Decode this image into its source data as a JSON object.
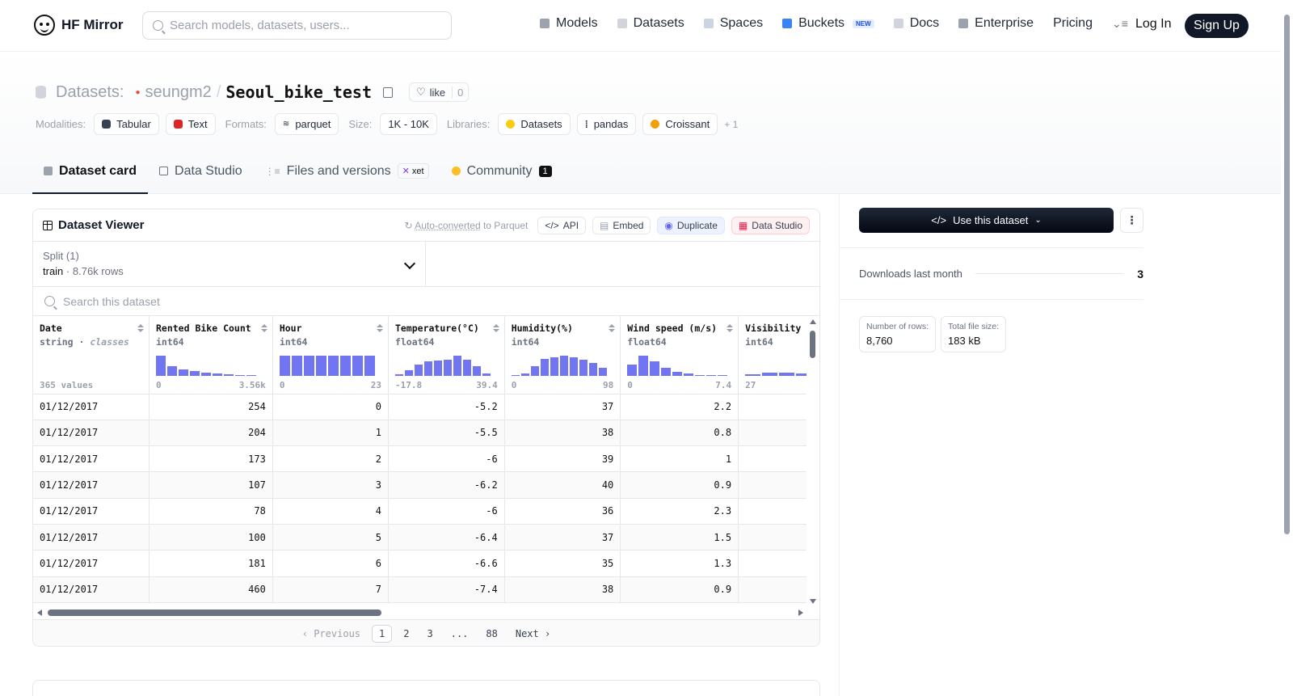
{
  "header": {
    "logo_text": "HF Mirror",
    "search_placeholder": "Search models, datasets, users...",
    "nav": [
      {
        "label": "Models",
        "color": "#9ca3af"
      },
      {
        "label": "Datasets",
        "color": "#d1d5db"
      },
      {
        "label": "Spaces",
        "color": "#d1d5db"
      },
      {
        "label": "Buckets",
        "color": "#3b82f6",
        "badge": "NEW"
      },
      {
        "label": "Docs",
        "color": "#d1d5db"
      },
      {
        "label": "Enterprise",
        "color": "#9ca3af"
      },
      {
        "label": "Pricing"
      }
    ],
    "login": "Log In",
    "signup": "Sign Up"
  },
  "dataset": {
    "kind": "Datasets:",
    "owner": "seungm2",
    "name": "Seoul_bike_test",
    "like_label": "like",
    "like_count": "0"
  },
  "tags": {
    "modalities_label": "Modalities:",
    "modalities": [
      "Tabular",
      "Text"
    ],
    "formats_label": "Formats:",
    "formats": [
      "parquet"
    ],
    "size_label": "Size:",
    "size": "1K - 10K",
    "libraries_label": "Libraries:",
    "libraries": [
      "Datasets",
      "pandas",
      "Croissant"
    ],
    "more": "+ 1"
  },
  "tabs": {
    "card": "Dataset card",
    "studio": "Data Studio",
    "files": "Files and versions",
    "xet": "xet",
    "community": "Community",
    "community_count": "1"
  },
  "viewer": {
    "title": "Dataset Viewer",
    "auto_converted": "Auto-converted",
    "to_parquet": "to Parquet",
    "api": "API",
    "embed": "Embed",
    "duplicate": "Duplicate",
    "data_studio": "Data Studio",
    "split_label": "Split (1)",
    "split_name": "train",
    "split_rows": "8.76k rows",
    "search_placeholder": "Search this dataset",
    "columns": [
      {
        "name": "Date",
        "type": "string",
        "subtype": "classes",
        "summary": "365 values"
      },
      {
        "name": "Rented Bike Count",
        "type": "int64",
        "min": "0",
        "max": "3.56k",
        "hist": [
          0.95,
          0.45,
          0.32,
          0.22,
          0.15,
          0.1,
          0.06,
          0.04,
          0.02
        ]
      },
      {
        "name": "Hour",
        "type": "int64",
        "min": "0",
        "max": "23",
        "hist": [
          0.95,
          0.95,
          0.95,
          0.95,
          0.95,
          0.95,
          0.95,
          0.95
        ]
      },
      {
        "name": "Temperature(°C)",
        "type": "float64",
        "min": "-17.8",
        "max": "39.4",
        "hist": [
          0.08,
          0.25,
          0.55,
          0.7,
          0.72,
          0.75,
          0.95,
          0.78,
          0.45,
          0.12
        ]
      },
      {
        "name": "Humidity(%)",
        "type": "int64",
        "min": "0",
        "max": "98",
        "hist": [
          0.05,
          0.12,
          0.45,
          0.82,
          0.9,
          0.95,
          0.88,
          0.75,
          0.6,
          0.38
        ]
      },
      {
        "name": "Wind speed (m/s)",
        "type": "float64",
        "min": "0",
        "max": "7.4",
        "hist": [
          0.55,
          0.95,
          0.7,
          0.38,
          0.2,
          0.1,
          0.05,
          0.03,
          0.02
        ]
      },
      {
        "name": "Visibility",
        "type": "int64",
        "min": "27",
        "max": "",
        "hist": [
          0.08,
          0.16,
          0.14,
          0.13,
          0.13,
          0.13
        ]
      }
    ],
    "rows": [
      [
        "01/12/2017",
        "254",
        "0",
        "-5.2",
        "37",
        "2.2"
      ],
      [
        "01/12/2017",
        "204",
        "1",
        "-5.5",
        "38",
        "0.8"
      ],
      [
        "01/12/2017",
        "173",
        "2",
        "-6",
        "39",
        "1"
      ],
      [
        "01/12/2017",
        "107",
        "3",
        "-6.2",
        "40",
        "0.9"
      ],
      [
        "01/12/2017",
        "78",
        "4",
        "-6",
        "36",
        "2.3"
      ],
      [
        "01/12/2017",
        "100",
        "5",
        "-6.4",
        "37",
        "1.5"
      ],
      [
        "01/12/2017",
        "181",
        "6",
        "-6.6",
        "35",
        "1.3"
      ],
      [
        "01/12/2017",
        "460",
        "7",
        "-7.4",
        "38",
        "0.9"
      ]
    ],
    "pager": {
      "prev": "‹ Previous",
      "pages": [
        "1",
        "2",
        "3",
        "...",
        "88"
      ],
      "current": "1",
      "next": "Next ›"
    }
  },
  "sidebar": {
    "use_dataset": "Use this dataset",
    "downloads_label": "Downloads last month",
    "downloads_value": "3",
    "rows_label": "Number of rows:",
    "rows_value": "8,760",
    "size_label": "Total file size:",
    "size_value": "183 kB"
  }
}
